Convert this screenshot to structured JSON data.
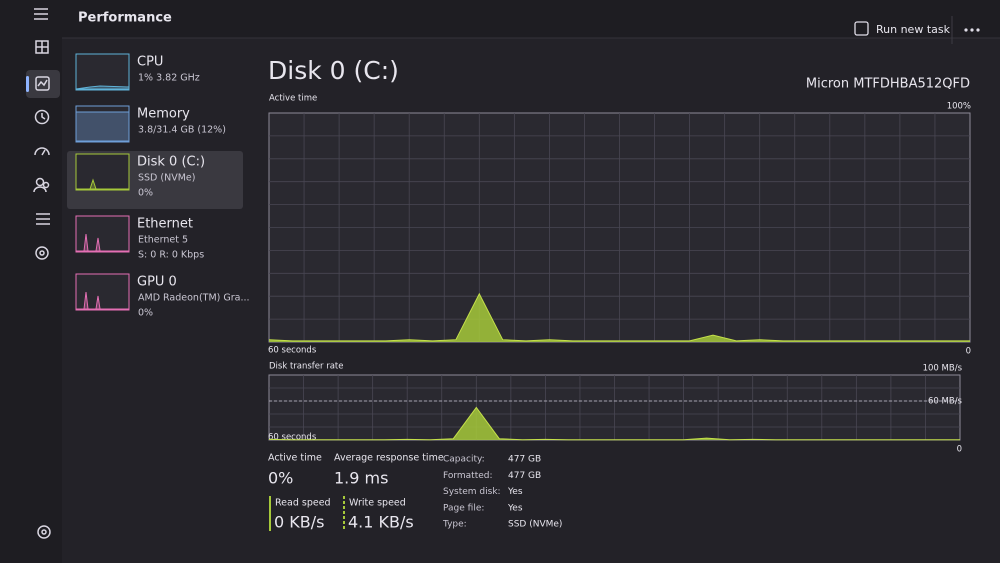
{
  "header": {
    "title": "Performance",
    "run_new_task": "Run new task"
  },
  "sidebar_items": [
    {
      "name": "CPU",
      "line1": "1% 3.82 GHz"
    },
    {
      "name": "Memory",
      "line1": "3.8/31.4 GB (12%)"
    },
    {
      "name": "Disk 0 (C:)",
      "line1": "SSD (NVMe)",
      "line2": "0%"
    },
    {
      "name": "Ethernet",
      "line1": "Ethernet 5",
      "line2": "S: 0 R: 0 Kbps"
    },
    {
      "name": "GPU 0",
      "line1": "AMD Radeon(TM) Gra...",
      "line2": "0%"
    }
  ],
  "detail": {
    "title": "Disk 0 (C:)",
    "model": "Micron MTFDHBA512QFD",
    "active_time_chart": {
      "label": "Active time",
      "x_left_label": "60 seconds",
      "ylim": [
        0,
        100
      ],
      "yticks": [
        0,
        {
          "value": 100,
          "label": "100%"
        }
      ],
      "values": [
        1,
        0.5,
        0.5,
        0.5,
        0.5,
        0.5,
        1,
        0.5,
        1,
        21,
        1,
        0.5,
        1,
        0.5,
        0.5,
        0.5,
        0.5,
        0.5,
        0.5,
        3,
        0.5,
        1,
        0.5,
        0.5,
        0.5,
        0.5,
        0.5,
        0.5,
        0.5,
        0.5,
        0.5
      ]
    },
    "transfer_rate_chart": {
      "label": "Disk transfer rate",
      "x_left_label": "60 seconds",
      "ylim": [
        0,
        100
      ],
      "yticks": [
        0,
        {
          "value": 60,
          "label": "60 MB/s"
        },
        {
          "value": 100,
          "label": "100 MB/s"
        }
      ],
      "values": [
        1,
        0.5,
        0.5,
        0.5,
        0.5,
        0.5,
        1,
        0.5,
        2,
        50,
        2,
        0.5,
        1,
        0.5,
        0.5,
        0.5,
        0.5,
        0.5,
        0.5,
        3,
        0.5,
        1,
        0.5,
        0.5,
        0.5,
        0.5,
        0.5,
        0.5,
        0.5,
        0.5,
        0.5
      ]
    },
    "stats": [
      {
        "label": "Active time",
        "value": "0%"
      },
      {
        "label": "Average response time",
        "value": "1.9 ms"
      },
      {
        "label": "Read speed",
        "value": "0 KB/s"
      },
      {
        "label": "Write speed",
        "value": "4.1 KB/s"
      }
    ],
    "properties": [
      [
        "Capacity:",
        "477 GB"
      ],
      [
        "Formatted:",
        "477 GB"
      ],
      [
        "System disk:",
        "Yes"
      ],
      [
        "Page file:",
        "Yes"
      ],
      [
        "Type:",
        "SSD (NVMe)"
      ]
    ]
  }
}
